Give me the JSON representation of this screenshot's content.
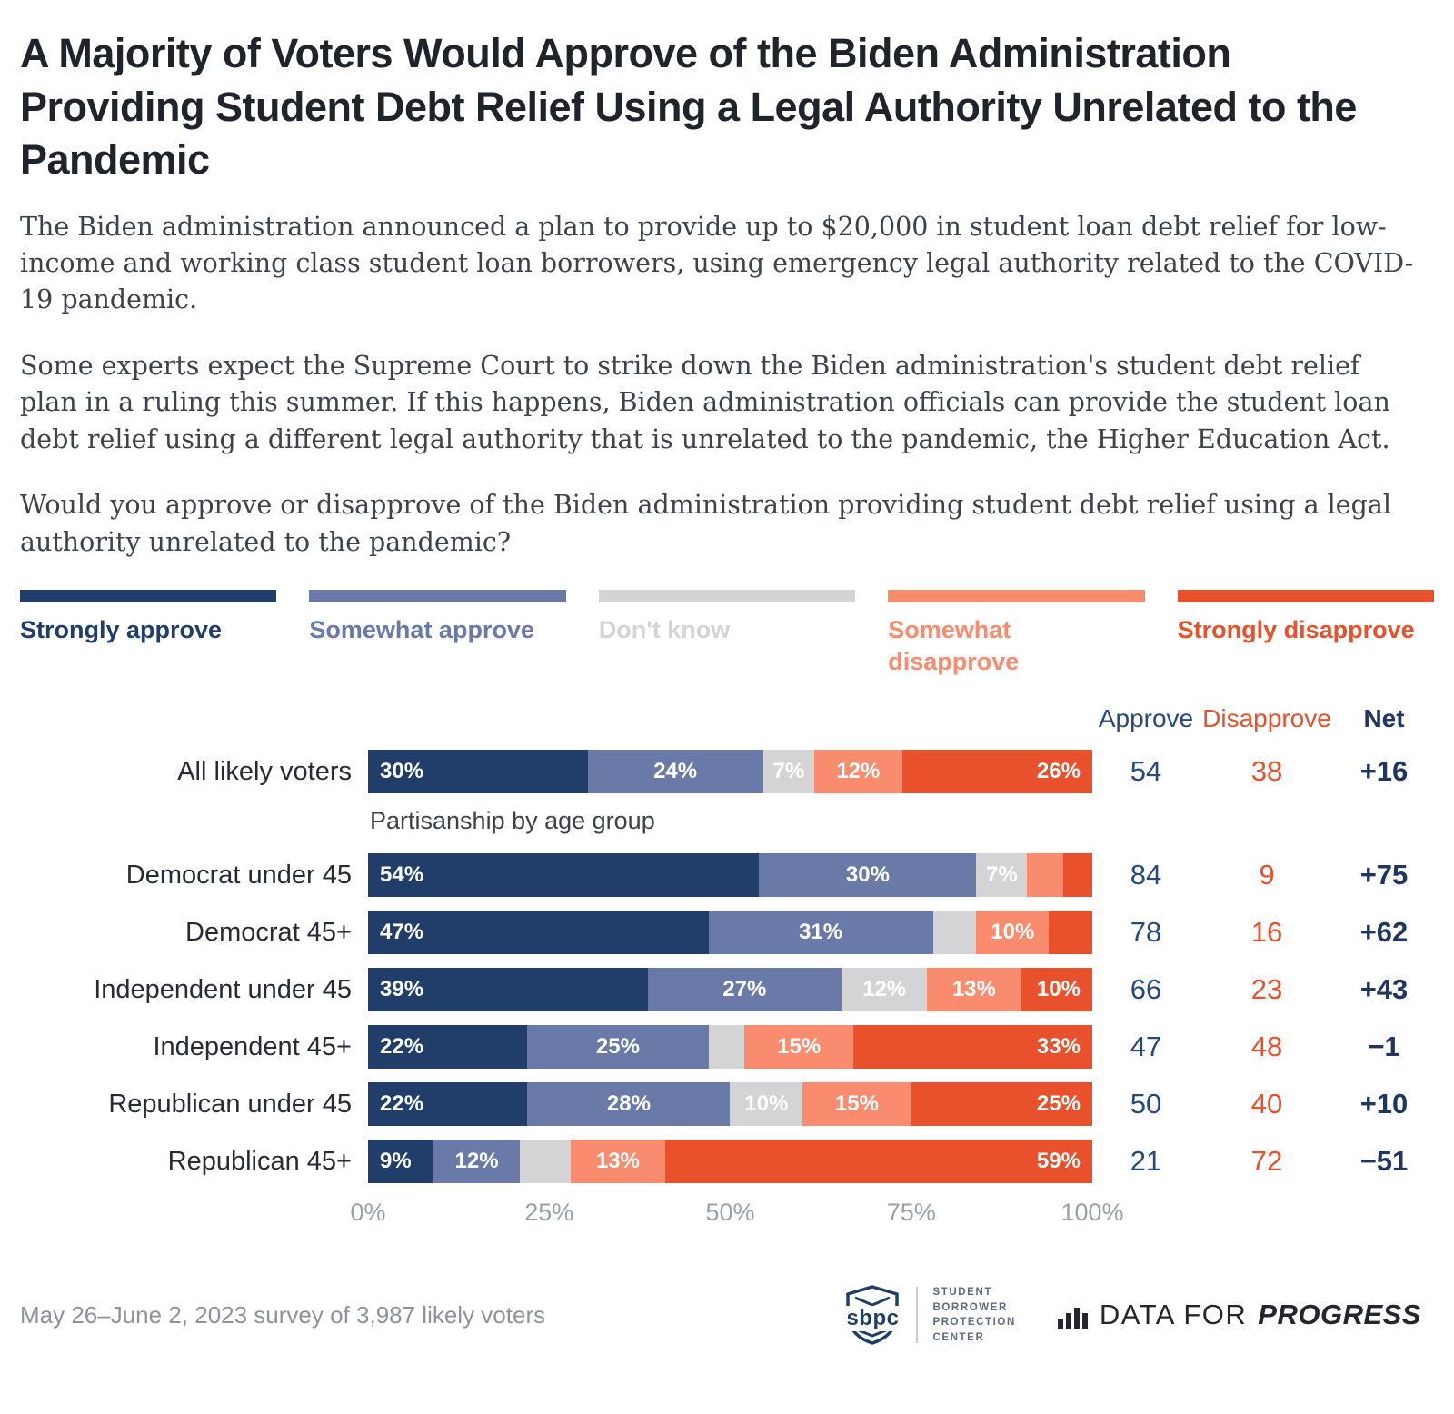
{
  "title": "A Majority of Voters Would Approve of the Biden Administration Providing Student Debt Relief Using a Legal Authority Unrelated to the Pandemic",
  "intro": {
    "p1": "The Biden administration announced a plan to provide up to $20,000 in student loan debt relief for low-income and working class student loan borrowers, using emergency legal authority related to the COVID-19 pandemic.",
    "p2": "Some experts expect the Supreme Court to strike down the Biden administration's student debt relief plan in a ruling this summer. If this happens, Biden administration officials can provide the student loan debt relief using a different legal authority that is unrelated to the pandemic, the Higher Education Act.",
    "p3": "Would you approve or disapprove of the Biden administration providing student debt relief using a legal authority unrelated to the pandemic?"
  },
  "legend": {
    "items": [
      {
        "label": "Strongly approve",
        "color": "#213e6b"
      },
      {
        "label": "Somewhat approve",
        "color": "#6979a8"
      },
      {
        "label": "Don't know",
        "color": "#d4d4d6"
      },
      {
        "label": "Somewhat disapprove",
        "color": "#f98b6e"
      },
      {
        "label": "Strongly disapprove",
        "color": "#e8512b"
      }
    ]
  },
  "columns": {
    "approve": "Approve",
    "disapprove": "Disapprove",
    "net": "Net"
  },
  "section_label": "Partisanship by age group",
  "chart_data": {
    "type": "bar",
    "stacked": true,
    "orientation": "horizontal",
    "categories": [
      "Strongly approve",
      "Somewhat approve",
      "Don't know",
      "Somewhat disapprove",
      "Strongly disapprove"
    ],
    "colors": [
      "#213e6b",
      "#6979a8",
      "#d4d4d6",
      "#f98b6e",
      "#e8512b"
    ],
    "xlim": [
      0,
      100
    ],
    "xticks": [
      "0%",
      "25%",
      "50%",
      "75%",
      "100%"
    ],
    "legend_position": "top",
    "grid": false,
    "rows": [
      {
        "label": "All likely voters",
        "values": [
          30,
          24,
          7,
          12,
          26
        ],
        "value_labels": [
          "30%",
          "24%",
          "7%",
          "12%",
          "26%"
        ],
        "approve": "54",
        "disapprove": "38",
        "net": "+16"
      },
      {
        "label": "Democrat under 45",
        "values": [
          54,
          30,
          7,
          5,
          4
        ],
        "value_labels": [
          "54%",
          "30%",
          "7%",
          "",
          ""
        ],
        "approve": "84",
        "disapprove": "9",
        "net": "+75"
      },
      {
        "label": "Democrat 45+",
        "values": [
          47,
          31,
          6,
          10,
          6
        ],
        "value_labels": [
          "47%",
          "31%",
          "",
          "10%",
          ""
        ],
        "approve": "78",
        "disapprove": "16",
        "net": "+62"
      },
      {
        "label": "Independent under 45",
        "values": [
          39,
          27,
          12,
          13,
          10
        ],
        "value_labels": [
          "39%",
          "27%",
          "12%",
          "13%",
          "10%"
        ],
        "approve": "66",
        "disapprove": "23",
        "net": "+43"
      },
      {
        "label": "Independent 45+",
        "values": [
          22,
          25,
          5,
          15,
          33
        ],
        "value_labels": [
          "22%",
          "25%",
          "",
          "15%",
          "33%"
        ],
        "approve": "47",
        "disapprove": "48",
        "net": "−1"
      },
      {
        "label": "Republican under 45",
        "values": [
          22,
          28,
          10,
          15,
          25
        ],
        "value_labels": [
          "22%",
          "28%",
          "10%",
          "15%",
          "25%"
        ],
        "approve": "50",
        "disapprove": "40",
        "net": "+10"
      },
      {
        "label": "Republican 45+",
        "values": [
          9,
          12,
          7,
          13,
          59
        ],
        "value_labels": [
          "9%",
          "12%",
          "",
          "13%",
          "59%"
        ],
        "approve": "21",
        "disapprove": "72",
        "net": "−51"
      }
    ]
  },
  "footer": {
    "note": "May 26–June 2, 2023 survey of 3,987 likely voters",
    "sbpc_logo_text": "sbpc",
    "sbpc_lines": [
      "STUDENT",
      "BORROWER",
      "PROTECTION",
      "CENTER"
    ],
    "dfp_prefix": "DATA FOR",
    "dfp_suffix": "PROGRESS"
  }
}
